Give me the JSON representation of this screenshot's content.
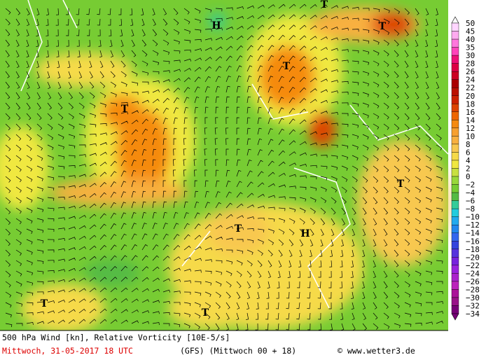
{
  "map": {
    "labels": [
      "H",
      "T",
      "T",
      "T",
      "T",
      "T",
      "T",
      "H",
      "T",
      "T"
    ]
  },
  "legend": {
    "levels": [
      {
        "label": "50",
        "color": "#ffffff"
      },
      {
        "label": "45",
        "color": "#ffd6ff"
      },
      {
        "label": "40",
        "color": "#ffaaf0"
      },
      {
        "label": "35",
        "color": "#ff77dd"
      },
      {
        "label": "30",
        "color": "#ff44bb"
      },
      {
        "label": "28",
        "color": "#ee1177"
      },
      {
        "label": "26",
        "color": "#dd0044"
      },
      {
        "label": "24",
        "color": "#cc0022"
      },
      {
        "label": "22",
        "color": "#aa0000"
      },
      {
        "label": "20",
        "color": "#bb1100"
      },
      {
        "label": "18",
        "color": "#cc2200"
      },
      {
        "label": "16",
        "color": "#dd4400"
      },
      {
        "label": "14",
        "color": "#ee6600"
      },
      {
        "label": "12",
        "color": "#f58a10"
      },
      {
        "label": "10",
        "color": "#f7a030"
      },
      {
        "label": "8",
        "color": "#f8b040"
      },
      {
        "label": "6",
        "color": "#f8c850"
      },
      {
        "label": "4",
        "color": "#f6da48"
      },
      {
        "label": "2",
        "color": "#f0e840"
      },
      {
        "label": "0",
        "color": "#c8e040"
      },
      {
        "label": "−2",
        "color": "#99d83a"
      },
      {
        "label": "−4",
        "color": "#77cc33"
      },
      {
        "label": "−6",
        "color": "#55bb44"
      },
      {
        "label": "−8",
        "color": "#33cc99"
      },
      {
        "label": "−10",
        "color": "#22ccdd"
      },
      {
        "label": "−12",
        "color": "#22aaee"
      },
      {
        "label": "−14",
        "color": "#2288ee"
      },
      {
        "label": "−16",
        "color": "#3366ee"
      },
      {
        "label": "−18",
        "color": "#3344dd"
      },
      {
        "label": "−20",
        "color": "#5533dd"
      },
      {
        "label": "−22",
        "color": "#7722dd"
      },
      {
        "label": "−24",
        "color": "#9922dd"
      },
      {
        "label": "−26",
        "color": "#aa22cc"
      },
      {
        "label": "−28",
        "color": "#bb22bb"
      },
      {
        "label": "−30",
        "color": "#aa1199"
      },
      {
        "label": "−32",
        "color": "#991188"
      },
      {
        "label": "−34",
        "color": "#770077"
      }
    ]
  },
  "footer": {
    "product": "500 hPa Wind [kn], Relative Vorticity [10E-5/s]",
    "date": "Mittwoch, 31-05-2017  18 UTC",
    "model": "(GFS)  (Mittwoch 00 + 18)",
    "credit": "© www.wetter3.de"
  }
}
